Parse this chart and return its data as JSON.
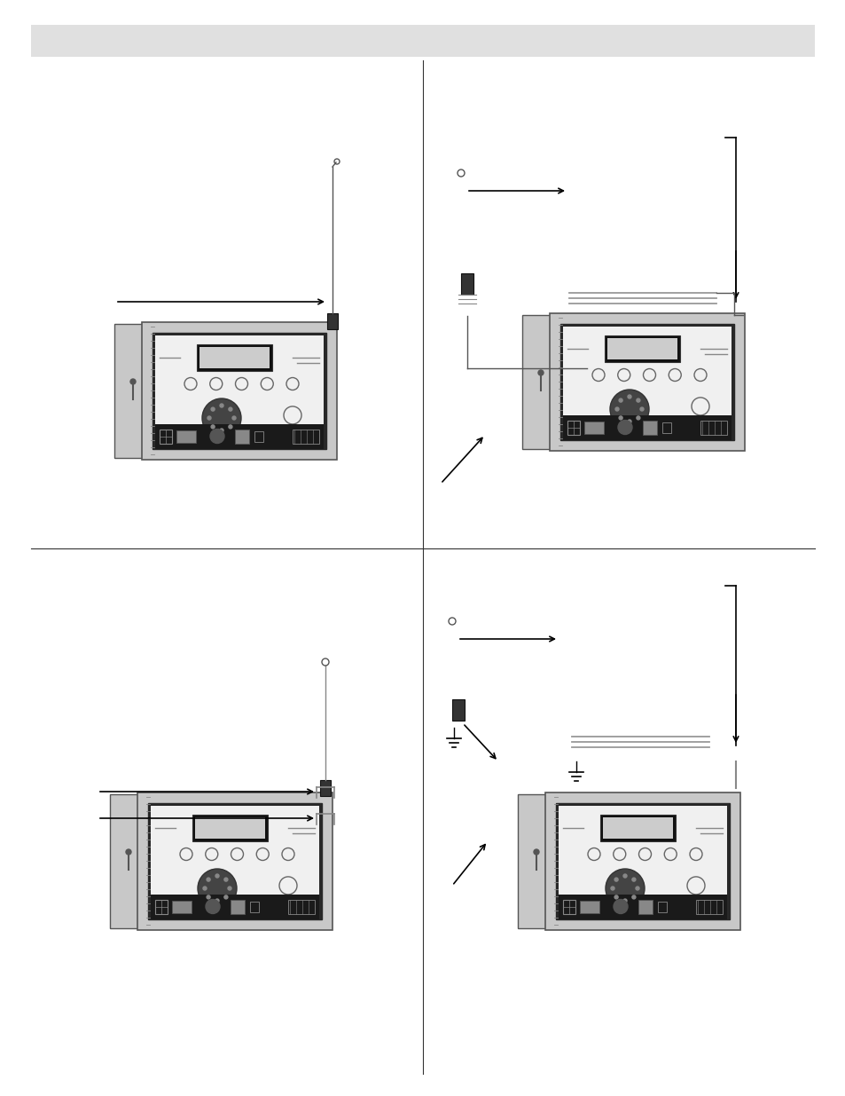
{
  "background_color": "#ffffff",
  "header_bar_color": "#e0e0e0",
  "box_outer_color": "#c8c8c8",
  "box_inner_color": "#e8e8e8",
  "box_panel_color": "#f2f2f2",
  "door_color": "#c8c8c8",
  "screen_color": "#000000",
  "knob_color": "#444444",
  "bottom_bar_color": "#1a1a1a",
  "divider_color": "#000000",
  "arrow_color": "#000000",
  "line_color": "#000000"
}
